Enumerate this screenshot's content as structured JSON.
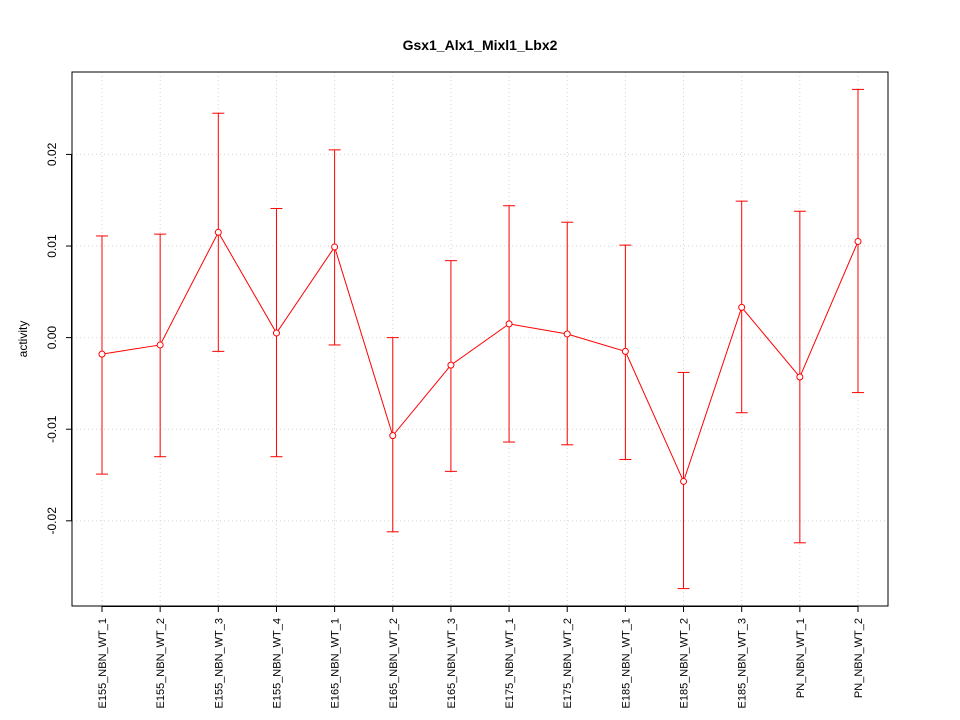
{
  "chart_data": {
    "type": "line",
    "title": "Gsx1_Alx1_Mixl1_Lbx2",
    "xlabel": "",
    "ylabel": "activity",
    "categories": [
      "E155_NBN_WT_1",
      "E155_NBN_WT_2",
      "E155_NBN_WT_3",
      "E155_NBN_WT_4",
      "E165_NBN_WT_1",
      "E165_NBN_WT_2",
      "E165_NBN_WT_3",
      "E175_NBN_WT_1",
      "E175_NBN_WT_2",
      "E185_NBN_WT_1",
      "E185_NBN_WT_2",
      "E185_NBN_WT_3",
      "PN_NBN_WT_1",
      "PN_NBN_WT_2"
    ],
    "values": [
      -0.0018,
      -0.0008,
      0.0115,
      0.0005,
      0.0099,
      -0.0107,
      -0.003,
      0.0015,
      0.0004,
      -0.0015,
      -0.0157,
      0.0033,
      -0.0043,
      0.0105
    ],
    "upper": [
      0.0111,
      0.0113,
      0.0245,
      0.0141,
      0.0205,
      0.0,
      0.0084,
      0.0144,
      0.0126,
      0.0101,
      -0.0038,
      0.0149,
      0.0138,
      0.0271
    ],
    "lower": [
      -0.0149,
      -0.013,
      -0.0015,
      -0.013,
      -0.0008,
      -0.0212,
      -0.0146,
      -0.0114,
      -0.0117,
      -0.0133,
      -0.0274,
      -0.0082,
      -0.0224,
      -0.006
    ],
    "yticks": [
      -0.02,
      -0.01,
      0.0,
      0.01,
      0.02
    ],
    "ytick_labels": [
      "-0.02",
      "-0.01",
      "0.00",
      "0.01",
      "0.02"
    ],
    "ylim": [
      -0.0293,
      0.029
    ],
    "grid": true,
    "colors": {
      "series": "#ff0000",
      "grid": "#d3d3d3",
      "axis": "#000000"
    }
  }
}
